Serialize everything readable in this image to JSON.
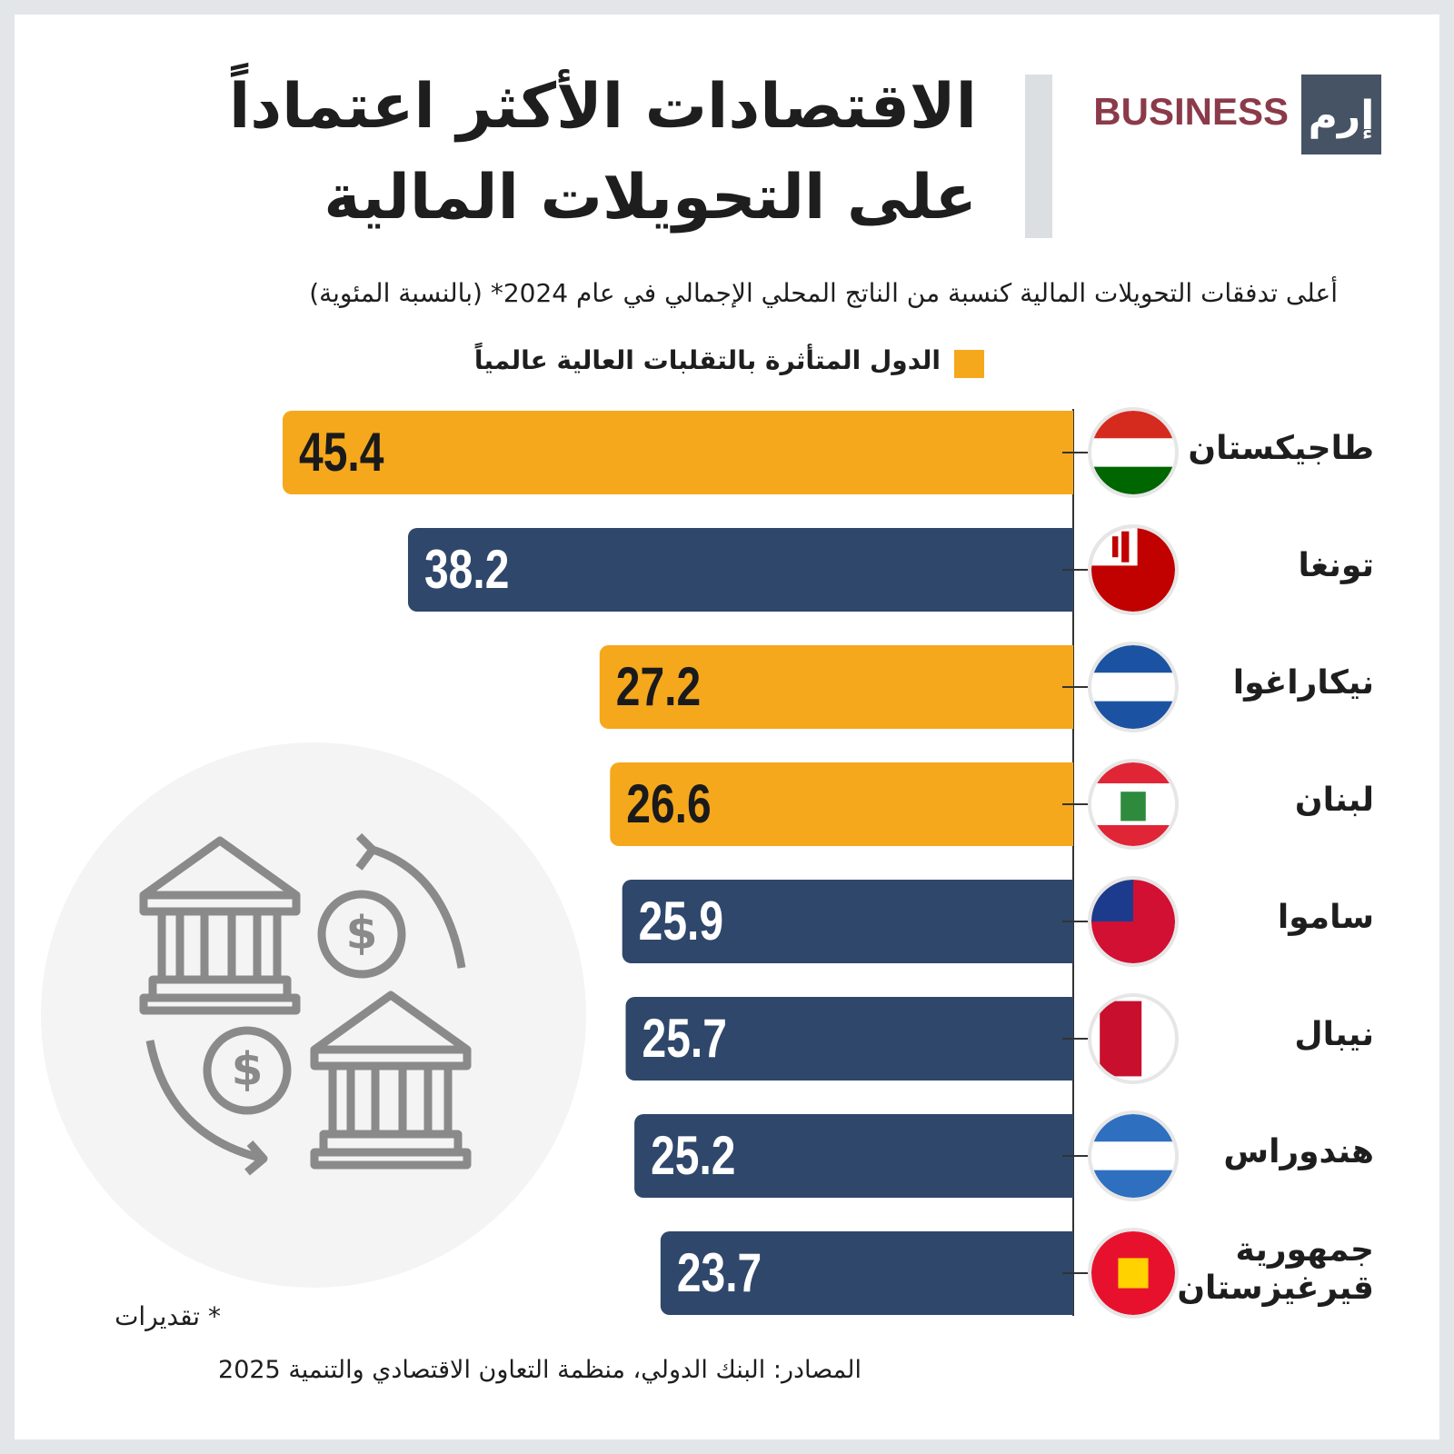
{
  "brand": {
    "name": "BUSINESS",
    "logo": "إرم"
  },
  "chart_data": {
    "type": "bar",
    "orientation": "horizontal",
    "title": [
      "الاقتصادات الأكثر اعتماداً",
      "على التحويلات المالية"
    ],
    "subtitle": "أعلى تدفقات التحويلات المالية كنسبة من الناتج المحلي الإجمالي في عام 2024* (بالنسبة المئوية)",
    "legend": {
      "label": "الدول المتأثرة بالتقلبات العالية عالمياً",
      "color": "#f5a81c"
    },
    "categories": [
      "طاجيكستان",
      "تونغا",
      "نيكاراغوا",
      "لبنان",
      "ساموا",
      "نيبال",
      "هندوراس",
      "جمهورية قيرغيزستان"
    ],
    "values": [
      45.4,
      38.2,
      27.2,
      26.6,
      25.9,
      25.7,
      25.2,
      23.7
    ],
    "colors": [
      "#f5a81c",
      "#2f476b",
      "#f5a81c",
      "#f5a81c",
      "#2f476b",
      "#2f476b",
      "#2f476b",
      "#2f476b"
    ],
    "footnote": "* تقديرات",
    "source": "المصادر: البنك الدولي، منظمة التعاون الاقتصادي والتنمية 2025"
  }
}
